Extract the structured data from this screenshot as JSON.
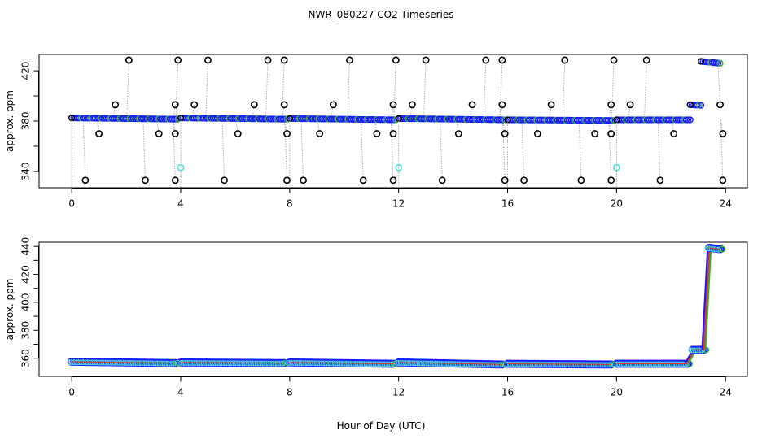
{
  "title": "NWR_080227  CO2 Timeseries",
  "xlabel": "Hour of Day (UTC)",
  "colors": {
    "raw_points": "#000000",
    "trace_line": "#aaaaaa",
    "main_series": "#1a1aff",
    "flagged": "#55e0e0",
    "accent_red": "#e03030",
    "accent_green": "#30b030"
  },
  "chart_data": [
    {
      "type": "scatter",
      "ylabel": "approx. ppm",
      "xlim": [
        -1.2,
        24.8
      ],
      "ylim": [
        327,
        433
      ],
      "xticks": [
        0,
        4,
        8,
        12,
        16,
        20,
        24
      ],
      "yticks": [
        340,
        380,
        420
      ],
      "ytick_labels": [
        "340",
        "380",
        "420"
      ],
      "segments": [
        {
          "x_start": 0.0,
          "x_end": 3.9,
          "y_start": 382.5,
          "y_end": 381.5
        },
        {
          "x_start": 4.0,
          "x_end": 7.9,
          "y_start": 382.5,
          "y_end": 381.5
        },
        {
          "x_start": 8.0,
          "x_end": 11.9,
          "y_start": 382.0,
          "y_end": 381.0
        },
        {
          "x_start": 12.0,
          "x_end": 15.9,
          "y_start": 382.0,
          "y_end": 381.0
        },
        {
          "x_start": 16.0,
          "x_end": 19.9,
          "y_start": 381.0,
          "y_end": 380.5
        },
        {
          "x_start": 20.0,
          "x_end": 22.7,
          "y_start": 381.0,
          "y_end": 381.0
        },
        {
          "x_start": 22.7,
          "x_end": 23.1,
          "y_start": 393.0,
          "y_end": 392.5
        },
        {
          "x_start": 23.1,
          "x_end": 23.8,
          "y_start": 427.5,
          "y_end": 426.0
        }
      ],
      "spikes_high": [
        2.1,
        3.9,
        5.0,
        7.2,
        7.8,
        10.2,
        11.9,
        13.0,
        15.2,
        15.8,
        18.1,
        19.9,
        21.1
      ],
      "spikes_mid": [
        1.6,
        3.8,
        4.5,
        6.7,
        7.8,
        9.6,
        11.8,
        12.5,
        14.7,
        15.8,
        17.6,
        19.8,
        20.5,
        23.8
      ],
      "spikes_low1": [
        1.0,
        3.2,
        3.8,
        6.1,
        7.9,
        9.1,
        11.2,
        11.8,
        14.2,
        15.9,
        17.1,
        19.2,
        19.8,
        22.1,
        23.9
      ],
      "spikes_low2": [
        0.5,
        2.7,
        3.8,
        5.6,
        7.9,
        8.5,
        10.7,
        11.8,
        13.6,
        15.9,
        16.6,
        18.7,
        19.8,
        21.6,
        23.9
      ],
      "flagged_points": [
        {
          "x": 4.0,
          "y": 343
        },
        {
          "x": 12.0,
          "y": 343
        },
        {
          "x": 20.0,
          "y": 343
        }
      ]
    },
    {
      "type": "line",
      "ylabel": "approx. ppm",
      "xlim": [
        -1.2,
        24.8
      ],
      "ylim": [
        347,
        443
      ],
      "xticks": [
        0,
        4,
        8,
        12,
        16,
        20,
        24
      ],
      "yticks": [
        360,
        380,
        400,
        420,
        440
      ],
      "ytick_labels": [
        "360",
        "380",
        "400",
        "420",
        "440"
      ],
      "segments": [
        {
          "x_start": 0.0,
          "x_end": 3.8,
          "y_start": 357.5,
          "y_end": 356.5
        },
        {
          "x_start": 4.0,
          "x_end": 7.8,
          "y_start": 357.0,
          "y_end": 356.5
        },
        {
          "x_start": 8.0,
          "x_end": 11.8,
          "y_start": 357.0,
          "y_end": 356.0
        },
        {
          "x_start": 12.0,
          "x_end": 15.8,
          "y_start": 357.0,
          "y_end": 355.5
        },
        {
          "x_start": 16.0,
          "x_end": 19.8,
          "y_start": 356.0,
          "y_end": 355.5
        },
        {
          "x_start": 20.0,
          "x_end": 22.6,
          "y_start": 356.0,
          "y_end": 356.0
        },
        {
          "x_start": 22.6,
          "x_end": 22.8,
          "y_start": 357.0,
          "y_end": 364.0
        },
        {
          "x_start": 22.8,
          "x_end": 23.2,
          "y_start": 366.0,
          "y_end": 366.0
        },
        {
          "x_start": 23.2,
          "x_end": 23.4,
          "y_start": 366.0,
          "y_end": 438.0
        },
        {
          "x_start": 23.4,
          "x_end": 23.8,
          "y_start": 439.0,
          "y_end": 438.0
        }
      ]
    }
  ]
}
